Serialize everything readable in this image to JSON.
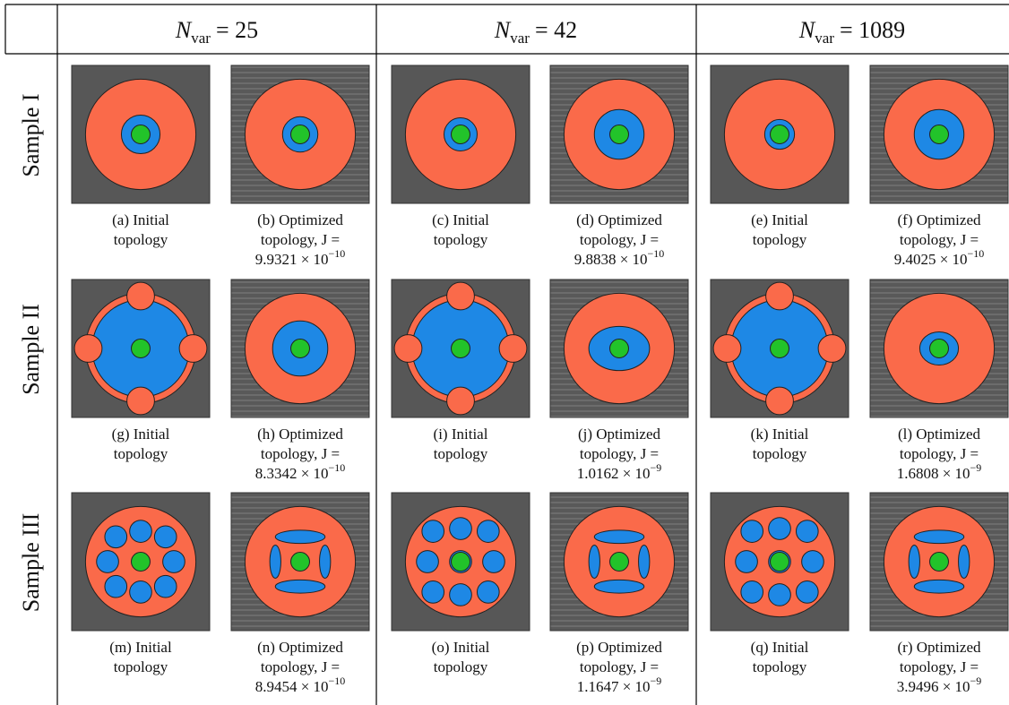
{
  "header": {
    "columns": [
      {
        "symbol": "N",
        "subscript": "var",
        "value": "= 25"
      },
      {
        "symbol": "N",
        "subscript": "var",
        "value": "= 42"
      },
      {
        "symbol": "N",
        "subscript": "var",
        "value": "= 1089"
      }
    ]
  },
  "rows": [
    {
      "label": "Sample I",
      "cells": [
        {
          "caption": [
            "(a) Initial",
            "topology"
          ]
        },
        {
          "caption": [
            "(b) Optimized",
            "topology, J ="
          ],
          "value": "9.9321 × 10",
          "exponent": "−10"
        },
        {
          "caption": [
            "(c) Initial",
            "topology"
          ]
        },
        {
          "caption": [
            "(d) Optimized",
            "topology, J ="
          ],
          "value": "9.8838 × 10",
          "exponent": "−10"
        },
        {
          "caption": [
            "(e) Initial",
            "topology"
          ]
        },
        {
          "caption": [
            "(f) Optimized",
            "topology, J ="
          ],
          "value": "9.4025 × 10",
          "exponent": "−10"
        }
      ]
    },
    {
      "label": "Sample II",
      "cells": [
        {
          "caption": [
            "(g) Initial",
            "topology"
          ]
        },
        {
          "caption": [
            "(h) Optimized",
            "topology, J ="
          ],
          "value": "8.3342 × 10",
          "exponent": "−10"
        },
        {
          "caption": [
            "(i) Initial",
            "topology"
          ]
        },
        {
          "caption": [
            "(j) Optimized",
            "topology, J ="
          ],
          "value": "1.0162 × 10",
          "exponent": "−9"
        },
        {
          "caption": [
            "(k) Initial",
            "topology"
          ]
        },
        {
          "caption": [
            "(l) Optimized",
            "topology, J ="
          ],
          "value": "1.6808 × 10",
          "exponent": "−9"
        }
      ]
    },
    {
      "label": "Sample III",
      "cells": [
        {
          "caption": [
            "(m) Initial",
            "topology"
          ]
        },
        {
          "caption": [
            "(n) Optimized",
            "topology, J ="
          ],
          "value": "8.9454 × 10",
          "exponent": "−10"
        },
        {
          "caption": [
            "(o) Initial",
            "topology"
          ]
        },
        {
          "caption": [
            "(p) Optimized",
            "topology, J ="
          ],
          "value": "1.1647 × 10",
          "exponent": "−9"
        },
        {
          "caption": [
            "(q) Initial",
            "topology"
          ]
        },
        {
          "caption": [
            "(r) Optimized",
            "topology, J ="
          ],
          "value": "3.9496 × 10",
          "exponent": "−9"
        }
      ]
    }
  ]
}
